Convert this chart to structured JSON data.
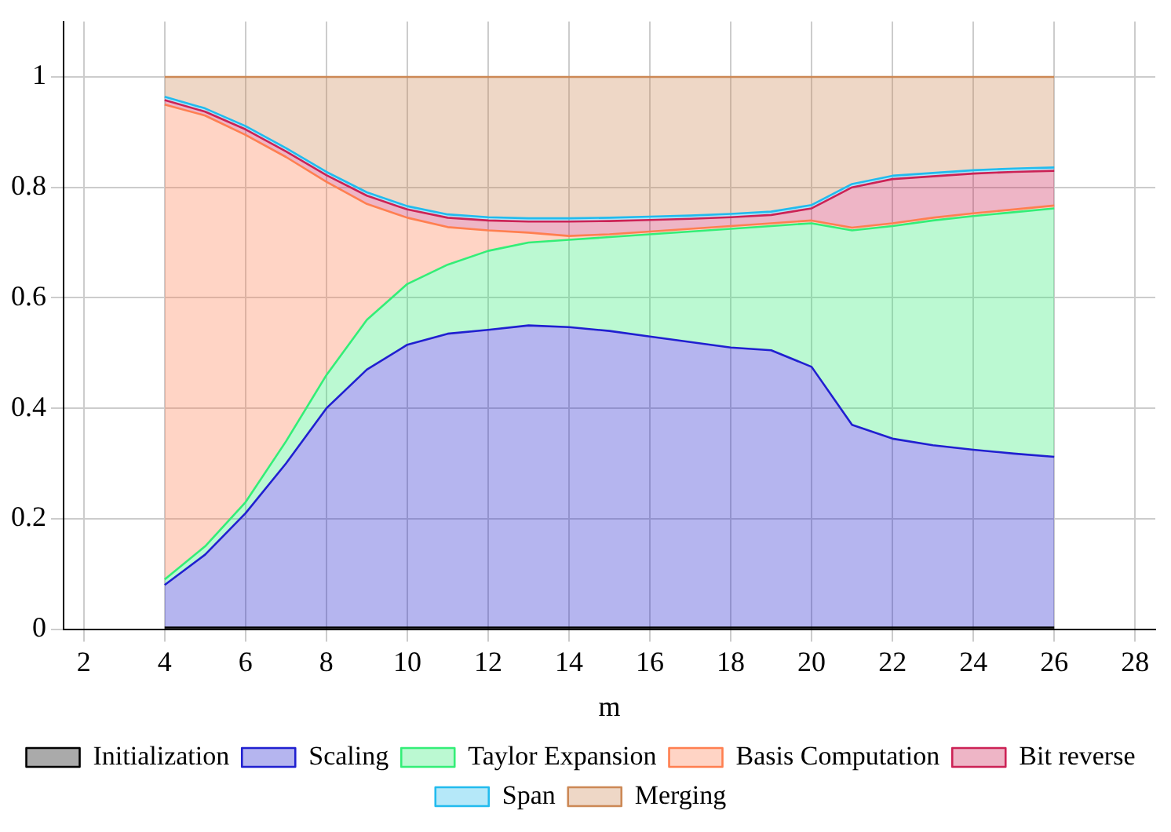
{
  "chart_data": {
    "type": "area",
    "stacked": true,
    "xlabel": "m",
    "x": [
      4,
      5,
      6,
      7,
      8,
      9,
      10,
      11,
      12,
      13,
      14,
      15,
      16,
      17,
      18,
      19,
      20,
      21,
      22,
      23,
      24,
      25,
      26
    ],
    "xlim": [
      1.5,
      28.5
    ],
    "xticks": [
      2,
      4,
      6,
      8,
      10,
      12,
      14,
      16,
      18,
      20,
      22,
      24,
      26,
      28
    ],
    "ylim": [
      0,
      1.1
    ],
    "yticks": [
      0,
      0.2,
      0.4,
      0.6,
      0.8,
      1
    ],
    "grid": true,
    "legend": "bottom",
    "marker": "none",
    "line_style": "solid",
    "series": [
      {
        "name": "Initialization",
        "color": "#000000",
        "values": [
          0.003,
          0.003,
          0.003,
          0.003,
          0.003,
          0.003,
          0.003,
          0.003,
          0.003,
          0.003,
          0.003,
          0.003,
          0.003,
          0.003,
          0.003,
          0.003,
          0.003,
          0.003,
          0.003,
          0.003,
          0.003,
          0.003,
          0.003
        ]
      },
      {
        "name": "Scaling",
        "color": "#2020d0",
        "values": [
          0.077,
          0.132,
          0.207,
          0.297,
          0.397,
          0.467,
          0.512,
          0.532,
          0.539,
          0.547,
          0.544,
          0.537,
          0.527,
          0.517,
          0.507,
          0.502,
          0.472,
          0.367,
          0.342,
          0.33,
          0.322,
          0.315,
          0.309
        ]
      },
      {
        "name": "Taylor Expansion",
        "color": "#33ee77",
        "values": [
          0.01,
          0.015,
          0.02,
          0.04,
          0.06,
          0.09,
          0.11,
          0.125,
          0.143,
          0.15,
          0.158,
          0.17,
          0.185,
          0.2,
          0.215,
          0.225,
          0.26,
          0.352,
          0.385,
          0.407,
          0.423,
          0.437,
          0.45
        ]
      },
      {
        "name": "Basis Computation",
        "color": "#ff7f50",
        "values": [
          0.86,
          0.78,
          0.665,
          0.515,
          0.35,
          0.21,
          0.12,
          0.068,
          0.037,
          0.018,
          0.007,
          0.005,
          0.005,
          0.005,
          0.005,
          0.005,
          0.005,
          0.005,
          0.005,
          0.005,
          0.005,
          0.005,
          0.005
        ]
      },
      {
        "name": "Bit reverse",
        "color": "#cc2255",
        "values": [
          0.008,
          0.007,
          0.01,
          0.01,
          0.012,
          0.015,
          0.015,
          0.017,
          0.018,
          0.02,
          0.026,
          0.024,
          0.021,
          0.018,
          0.016,
          0.015,
          0.022,
          0.073,
          0.08,
          0.075,
          0.072,
          0.068,
          0.063
        ]
      },
      {
        "name": "Span",
        "color": "#22bbee",
        "values": [
          0.006,
          0.006,
          0.006,
          0.006,
          0.006,
          0.006,
          0.006,
          0.006,
          0.006,
          0.006,
          0.006,
          0.006,
          0.006,
          0.006,
          0.006,
          0.006,
          0.006,
          0.006,
          0.006,
          0.006,
          0.006,
          0.006,
          0.006
        ]
      },
      {
        "name": "Merging",
        "color": "#cc8855",
        "values": [
          0.036,
          0.057,
          0.089,
          0.129,
          0.172,
          0.209,
          0.234,
          0.249,
          0.254,
          0.256,
          0.256,
          0.255,
          0.253,
          0.251,
          0.248,
          0.244,
          0.232,
          0.194,
          0.179,
          0.174,
          0.169,
          0.166,
          0.164
        ]
      }
    ]
  }
}
